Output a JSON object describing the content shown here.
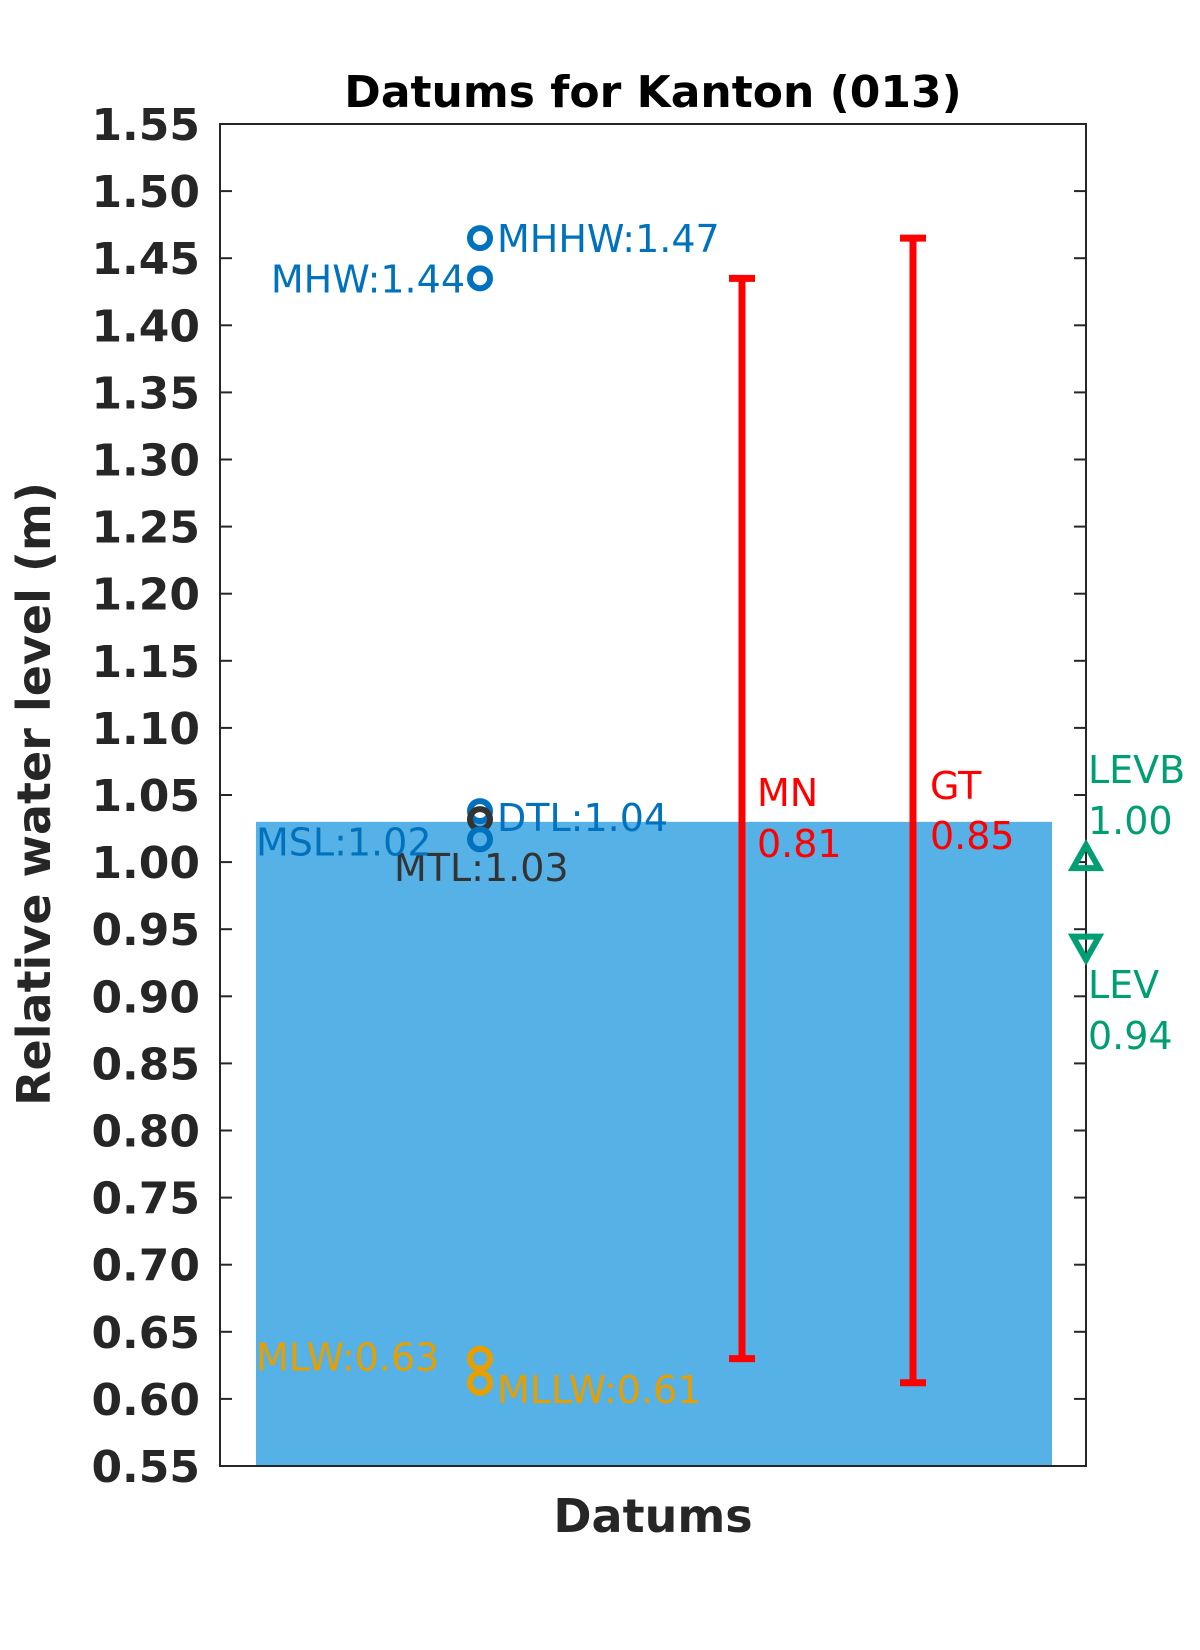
{
  "chart_data": {
    "type": "scatter",
    "title": "Datums for Kanton (013)",
    "xlabel": "Datums",
    "ylabel": "Relative water level (m)",
    "ylim": [
      0.55,
      1.55
    ],
    "yticks": [
      "0.55",
      "0.60",
      "0.65",
      "0.70",
      "0.75",
      "0.80",
      "0.85",
      "0.90",
      "0.95",
      "1.00",
      "1.05",
      "1.10",
      "1.15",
      "1.20",
      "1.25",
      "1.30",
      "1.35",
      "1.40",
      "1.45",
      "1.50",
      "1.55"
    ],
    "grid": false,
    "water_fill": {
      "value": 1.03,
      "color": "#56B1E6"
    },
    "datums": [
      {
        "name": "MHHW",
        "value": 1.465,
        "label": "MHHW:1.47",
        "color": "#0072BD"
      },
      {
        "name": "MHW",
        "value": 1.435,
        "label": "MHW:1.44",
        "color": "#0072BD"
      },
      {
        "name": "DTL",
        "value": 1.038,
        "label": "DTL:1.04",
        "color": "#0072BD"
      },
      {
        "name": "MTL",
        "value": 1.032,
        "label": "MTL:1.03",
        "color": "#333333"
      },
      {
        "name": "MSL",
        "value": 1.017,
        "label": "MSL:1.02",
        "color": "#0072BD"
      },
      {
        "name": "MLW",
        "value": 0.63,
        "label": "MLW:0.63",
        "color": "#E69F00"
      },
      {
        "name": "MLLW",
        "value": 0.612,
        "label": "MLLW:0.61",
        "color": "#E69F00"
      }
    ],
    "ranges": [
      {
        "name": "MN",
        "low": 0.63,
        "high": 1.435,
        "label_name": "MN",
        "label_value": "0.81",
        "color": "#FF0000"
      },
      {
        "name": "GT",
        "low": 0.612,
        "high": 1.465,
        "label_name": "GT",
        "label_value": "0.85",
        "color": "#FF0000"
      }
    ],
    "extremes": [
      {
        "name": "LEVB",
        "value": 1.003,
        "label_name": "LEVB",
        "label_value": "1.00",
        "marker": "triangle-up",
        "color": "#009E73"
      },
      {
        "name": "LEV",
        "value": 0.937,
        "label_name": "LEV",
        "label_value": "0.94",
        "marker": "triangle-down",
        "color": "#009E73"
      }
    ]
  }
}
